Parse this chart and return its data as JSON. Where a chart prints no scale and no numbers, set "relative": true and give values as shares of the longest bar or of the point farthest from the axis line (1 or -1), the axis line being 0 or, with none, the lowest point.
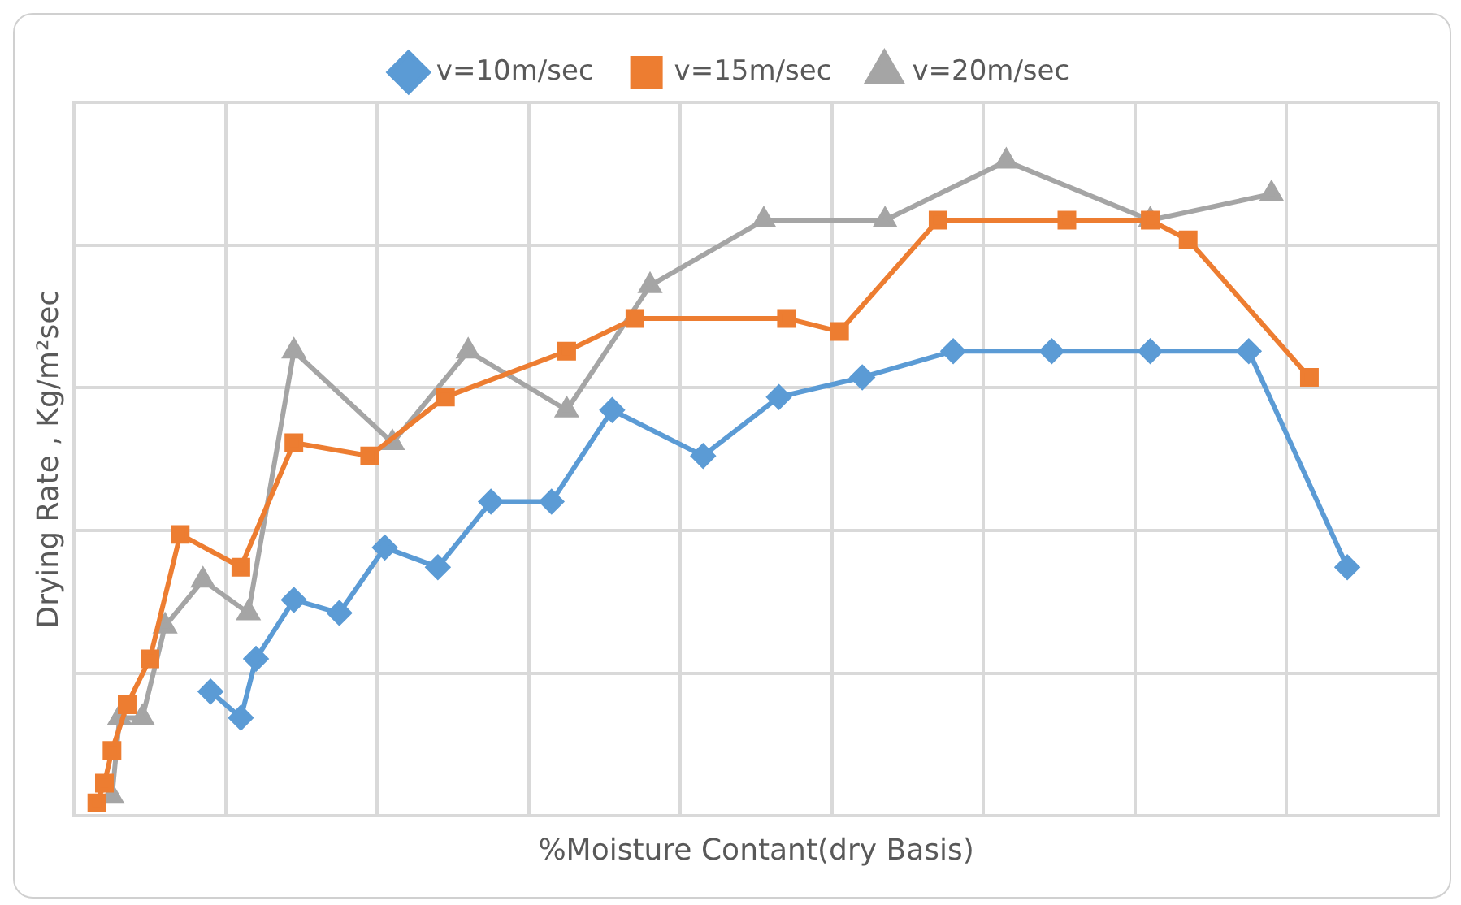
{
  "chart_data": {
    "type": "line",
    "xlabel": "%Moisture Contant(dry Basis)",
    "ylabel": "Drying Rate , Kg/m²sec",
    "relative": true,
    "grid": true,
    "legend": "top",
    "line_style": "solid",
    "categories": [
      null,
      null,
      null,
      null,
      null,
      null,
      null,
      null,
      null,
      null,
      null,
      null,
      null,
      null,
      null,
      null,
      null,
      null,
      null,
      null,
      null,
      null,
      null,
      null,
      null,
      null,
      null,
      null,
      null,
      null,
      null,
      null,
      null,
      null,
      null,
      null,
      null,
      null,
      null,
      null,
      null,
      null,
      null,
      null,
      null,
      null,
      null,
      null,
      null,
      null,
      null,
      null,
      null,
      null,
      null,
      null,
      null,
      null,
      null,
      null,
      null,
      null,
      null,
      null,
      null,
      null,
      null,
      null,
      null,
      null,
      null,
      null,
      null,
      null,
      null,
      null,
      null,
      null,
      null,
      null,
      null,
      null,
      null,
      null,
      null,
      null,
      null,
      null,
      null,
      null,
      null,
      null,
      null,
      null,
      null,
      null,
      null,
      null,
      null,
      null,
      null,
      null,
      null,
      null,
      null,
      null,
      null,
      null,
      null,
      null,
      null,
      null,
      null,
      null,
      null,
      null,
      null,
      null,
      null,
      null,
      null,
      null,
      null,
      null,
      null,
      null,
      null,
      null,
      null,
      null,
      null,
      null,
      null,
      null,
      null,
      null,
      null,
      null,
      null,
      null,
      null,
      null,
      null,
      null,
      null,
      null,
      null,
      null,
      null,
      null,
      null,
      null,
      null,
      null,
      null,
      null,
      null,
      null,
      null,
      null,
      null,
      null,
      null,
      null,
      null,
      null,
      null,
      null,
      null,
      null,
      null,
      null,
      null,
      null,
      null,
      null,
      null,
      null,
      null,
      null,
      null
    ],
    "series": [
      {
        "name": "v=10m/sec",
        "color": "#5b9bd5",
        "marker": "diamond",
        "values": [
          null,
          null,
          null,
          null,
          null,
          null,
          null,
          null,
          null,
          null,
          null,
          null,
          null,
          null,
          null,
          null,
          null,
          null,
          0.19,
          null,
          null,
          null,
          0.15,
          null,
          0.24,
          null,
          null,
          null,
          null,
          0.33,
          null,
          null,
          null,
          null,
          null,
          0.31,
          null,
          null,
          null,
          null,
          null,
          0.41,
          null,
          null,
          null,
          null,
          null,
          null,
          0.38,
          null,
          null,
          null,
          null,
          null,
          null,
          0.48,
          null,
          null,
          null,
          null,
          null,
          null,
          null,
          0.48,
          null,
          null,
          null,
          null,
          null,
          null,
          null,
          0.62,
          null,
          null,
          null,
          null,
          null,
          null,
          null,
          null,
          null,
          null,
          null,
          0.55,
          null,
          null,
          null,
          null,
          null,
          null,
          null,
          null,
          null,
          0.64,
          null,
          null,
          null,
          null,
          null,
          null,
          null,
          null,
          null,
          null,
          0.67,
          null,
          null,
          null,
          null,
          null,
          null,
          null,
          null,
          null,
          null,
          null,
          0.71,
          null,
          null,
          null,
          null,
          null,
          null,
          null,
          null,
          null,
          null,
          null,
          null,
          0.71,
          null,
          null,
          null,
          null,
          null,
          null,
          null,
          null,
          null,
          null,
          null,
          null,
          0.71,
          null,
          null,
          null,
          null,
          null,
          null,
          null,
          null,
          null,
          null,
          null,
          null,
          0.71,
          null,
          null,
          null,
          null,
          null,
          null,
          null,
          null,
          null,
          null,
          null,
          null,
          0.38,
          null,
          null,
          null,
          null,
          null,
          null,
          null,
          null,
          null,
          null,
          null,
          null
        ]
      },
      {
        "name": "v=15m/sec",
        "color": "#ed7d31",
        "marker": "square",
        "values": [
          null,
          null,
          null,
          0.02,
          0.05,
          0.1,
          null,
          0.17,
          null,
          null,
          0.24,
          null,
          null,
          null,
          0.43,
          null,
          null,
          null,
          null,
          null,
          null,
          null,
          0.38,
          null,
          null,
          null,
          null,
          null,
          null,
          0.57,
          null,
          null,
          null,
          null,
          null,
          null,
          null,
          null,
          null,
          0.55,
          null,
          null,
          null,
          null,
          null,
          null,
          null,
          null,
          null,
          0.64,
          null,
          null,
          null,
          null,
          null,
          null,
          null,
          null,
          null,
          null,
          null,
          null,
          null,
          null,
          null,
          0.71,
          null,
          null,
          null,
          null,
          null,
          null,
          null,
          null,
          0.76,
          null,
          null,
          null,
          null,
          null,
          null,
          null,
          null,
          null,
          null,
          null,
          null,
          null,
          null,
          null,
          null,
          null,
          null,
          null,
          0.76,
          null,
          null,
          null,
          null,
          null,
          null,
          0.74,
          null,
          null,
          null,
          null,
          null,
          null,
          null,
          null,
          null,
          null,
          null,
          null,
          0.91,
          null,
          null,
          null,
          null,
          null,
          null,
          null,
          null,
          null,
          null,
          null,
          null,
          null,
          null,
          null,
          null,
          0.91,
          null,
          null,
          null,
          null,
          null,
          null,
          null,
          null,
          null,
          null,
          0.91,
          null,
          null,
          null,
          null,
          0.88,
          null,
          null,
          null,
          null,
          null,
          null,
          null,
          null,
          null,
          null,
          null,
          null,
          null,
          null,
          null,
          0.67,
          null,
          null,
          null,
          null,
          null,
          null,
          null,
          null,
          null,
          null,
          null,
          null,
          null,
          null,
          null,
          null,
          null
        ]
      },
      {
        "name": "v=20m/sec",
        "color": "#a5a5a5",
        "marker": "triangle",
        "values": [
          null,
          null,
          null,
          null,
          null,
          0.03,
          0.15,
          null,
          null,
          0.15,
          null,
          null,
          0.29,
          null,
          null,
          null,
          null,
          0.36,
          null,
          null,
          null,
          null,
          null,
          0.31,
          null,
          null,
          null,
          null,
          null,
          0.71,
          null,
          null,
          null,
          null,
          null,
          null,
          null,
          null,
          null,
          null,
          null,
          null,
          0.57,
          null,
          null,
          null,
          null,
          null,
          null,
          null,
          null,
          null,
          0.71,
          null,
          null,
          null,
          null,
          null,
          null,
          null,
          null,
          null,
          null,
          null,
          null,
          0.62,
          null,
          null,
          null,
          null,
          null,
          null,
          null,
          null,
          null,
          null,
          0.81,
          null,
          null,
          null,
          null,
          null,
          null,
          null,
          null,
          null,
          null,
          null,
          null,
          null,
          null,
          0.91,
          null,
          null,
          null,
          null,
          null,
          null,
          null,
          null,
          null,
          null,
          null,
          null,
          null,
          null,
          null,
          0.91,
          null,
          null,
          null,
          null,
          null,
          null,
          null,
          null,
          null,
          null,
          null,
          null,
          null,
          null,
          null,
          1,
          null,
          null,
          null,
          null,
          null,
          null,
          null,
          null,
          null,
          null,
          null,
          null,
          null,
          null,
          null,
          null,
          null,
          null,
          0.91,
          null,
          null,
          null,
          null,
          null,
          null,
          null,
          null,
          null,
          null,
          null,
          null,
          null,
          null,
          null,
          0.95,
          null,
          null,
          null,
          null,
          null,
          null,
          null,
          null,
          null,
          null,
          null,
          null,
          null,
          null,
          null,
          null,
          null,
          null,
          null,
          null,
          null,
          null
        ]
      }
    ]
  }
}
